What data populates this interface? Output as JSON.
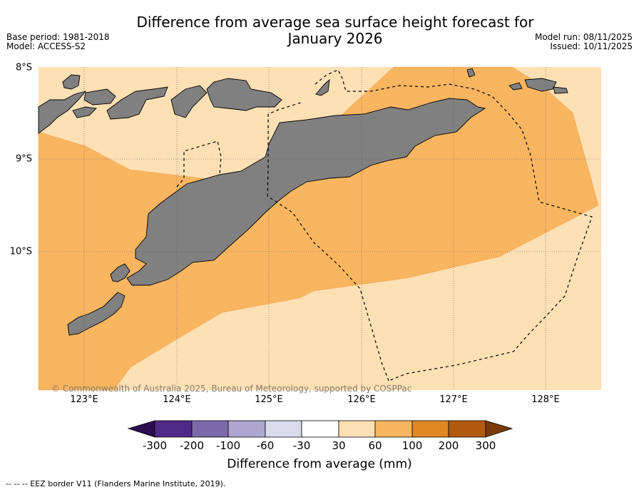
{
  "title_line1": "Difference from average sea surface height forecast for",
  "title_line2": "January 2026",
  "base_period": "Base period: 1981-2018",
  "model": "Model: ACCESS-S2",
  "model_run": "Model run: 08/11/2025",
  "issued": "Issued: 10/11/2025",
  "copyright": "© Commonwealth of Australia 2025, Bureau of Meteorology, supported by COSPPac",
  "lat_labels": [
    "8°S",
    "9°S",
    "10°S"
  ],
  "lon_labels": [
    "123°E",
    "124°E",
    "125°E",
    "126°E",
    "127°E",
    "128°E"
  ],
  "colorbar": {
    "ticks": [
      "-300",
      "-200",
      "-100",
      "-60",
      "-30",
      "30",
      "60",
      "100",
      "200",
      "300"
    ],
    "colors": [
      "#2b0c4e",
      "#4f2a86",
      "#7c6bab",
      "#aea6d0",
      "#d9dbec",
      "#ffffff",
      "#fde0b4",
      "#f9b560",
      "#e08821",
      "#b15a0e",
      "#7b3a09"
    ],
    "title": "Difference from average (mm)"
  },
  "footnote": "-- -- -- EEZ border V11 (Flanders Marine Institute, 2019).",
  "map_colors": {
    "light": "#fde0b4",
    "medium": "#f9b560",
    "land": "#808080"
  }
}
